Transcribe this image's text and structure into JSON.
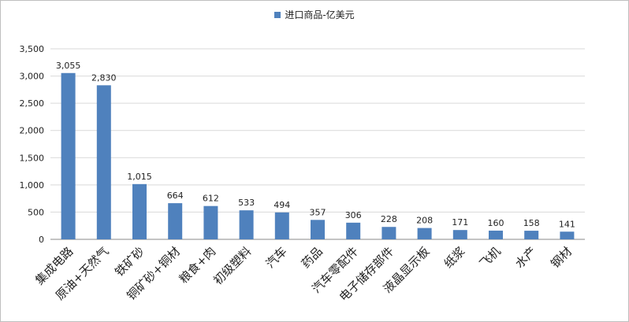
{
  "chart_data": {
    "type": "bar",
    "series": [
      {
        "name": "进口商品-亿美元",
        "color": "#4f81bd",
        "values": [
          3055,
          2830,
          1015,
          664,
          612,
          533,
          494,
          357,
          306,
          228,
          208,
          171,
          160,
          158,
          141
        ]
      }
    ],
    "categories": [
      "集成电路",
      "原油+天然气",
      "铁矿砂",
      "铜矿砂+铜材",
      "粮食+肉",
      "初级塑料",
      "汽车",
      "药品",
      "汽车零配件",
      "电子储存部件",
      "液晶显示板",
      "纸浆",
      "飞机",
      "水产",
      "钢材"
    ],
    "data_labels": [
      "3,055",
      "2,830",
      "1,015",
      "664",
      "612",
      "533",
      "494",
      "357",
      "306",
      "228",
      "208",
      "171",
      "160",
      "158",
      "141"
    ],
    "y_ticks": [
      0,
      500,
      1000,
      1500,
      2000,
      2500,
      3000,
      3500
    ],
    "y_tick_labels": [
      "0",
      "500",
      "1,000",
      "1,500",
      "2,000",
      "2,500",
      "3,000",
      "3,500"
    ],
    "ylim": [
      0,
      3500
    ],
    "grid": true,
    "legend_position": "top-center",
    "title": "",
    "xlabel": "",
    "ylabel": ""
  }
}
